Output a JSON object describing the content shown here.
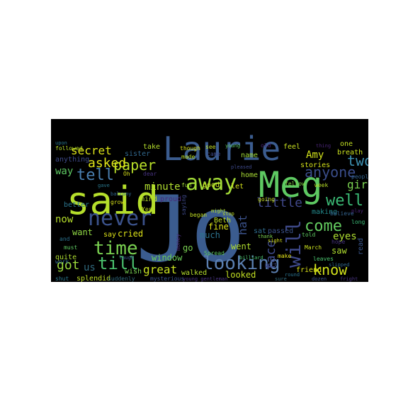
{
  "wordcloud": {
    "background_color": "#000000",
    "page_color": "#ffffff",
    "words": [
      {
        "text": "Jo",
        "color": "#3b5c8f"
      },
      {
        "text": "said",
        "color": "#b5de2b"
      },
      {
        "text": "Laurie",
        "color": "#3b5c8f"
      },
      {
        "text": "Meg",
        "color": "#5ec962"
      },
      {
        "text": "never",
        "color": "#3b528b"
      },
      {
        "text": "away",
        "color": "#a2da37"
      },
      {
        "text": "time",
        "color": "#7ad151"
      },
      {
        "text": "looking",
        "color": "#5b7fb0"
      },
      {
        "text": "till",
        "color": "#4ac16d"
      },
      {
        "text": "will",
        "color": "#3e4989"
      },
      {
        "text": "well",
        "color": "#3bbb75"
      },
      {
        "text": "come",
        "color": "#63cb5f"
      },
      {
        "text": "tell",
        "color": "#4a7fb0"
      },
      {
        "text": "know",
        "color": "#d2e21b"
      },
      {
        "text": "face",
        "color": "#3e4a89"
      },
      {
        "text": "paper",
        "color": "#b8de29"
      },
      {
        "text": "anyone",
        "color": "#3a4d8a"
      },
      {
        "text": "two",
        "color": "#3d8fb0"
      },
      {
        "text": "little",
        "color": "#3f4788"
      },
      {
        "text": "asked",
        "color": "#dde318"
      },
      {
        "text": "secret",
        "color": "#dce319"
      },
      {
        "text": "got",
        "color": "#9bd93c"
      },
      {
        "text": "great",
        "color": "#c8e020"
      },
      {
        "text": "girl",
        "color": "#7ad151"
      },
      {
        "text": "now",
        "color": "#b5de2b"
      },
      {
        "text": "us",
        "color": "#30697d"
      },
      {
        "text": "eyes",
        "color": "#addc30"
      },
      {
        "text": "hat",
        "color": "#3b528b"
      },
      {
        "text": "minute",
        "color": "#b0dd2f"
      },
      {
        "text": "way",
        "color": "#5ec962"
      },
      {
        "text": "Amy",
        "color": "#d2e21b"
      },
      {
        "text": "want",
        "color": "#8fd744"
      },
      {
        "text": "cried",
        "color": "#dde318"
      },
      {
        "text": "window",
        "color": "#6ccd5a"
      },
      {
        "text": "go",
        "color": "#7ad151"
      },
      {
        "text": "went",
        "color": "#b0dd2f"
      },
      {
        "text": "fine",
        "color": "#dde318"
      },
      {
        "text": "much",
        "color": "#2c728e"
      },
      {
        "text": "looked",
        "color": "#c2df23"
      },
      {
        "text": "saw",
        "color": "#b0dd2f"
      },
      {
        "text": "read",
        "color": "#39568c"
      },
      {
        "text": "making",
        "color": "#238a8d"
      },
      {
        "text": "sat",
        "color": "#2f6c8e"
      },
      {
        "text": "passed",
        "color": "#3b528b"
      },
      {
        "text": "friend",
        "color": "#dde318"
      },
      {
        "text": "walked",
        "color": "#b5de2b"
      },
      {
        "text": "splendid",
        "color": "#bfdf25"
      },
      {
        "text": "wish",
        "color": "#7ad151"
      },
      {
        "text": "quite",
        "color": "#addc30"
      },
      {
        "text": "say",
        "color": "#dde318"
      },
      {
        "text": "better",
        "color": "#2b758e"
      },
      {
        "text": "anything",
        "color": "#3e4a89"
      },
      {
        "text": "take",
        "color": "#b5de2b"
      },
      {
        "text": "sister",
        "color": "#31688e"
      },
      {
        "text": "feel",
        "color": "#c8e020"
      },
      {
        "text": "name",
        "color": "#a2da37"
      },
      {
        "text": "home",
        "color": "#a8db34"
      },
      {
        "text": "stories",
        "color": "#d5e21a"
      },
      {
        "text": "breath",
        "color": "#cae11f"
      },
      {
        "text": "one",
        "color": "#c2df23"
      },
      {
        "text": "fellow",
        "color": "#86d549"
      },
      {
        "text": "week",
        "color": "#b8de29"
      },
      {
        "text": "people",
        "color": "#33638d"
      },
      {
        "text": "believe",
        "color": "#33638d"
      },
      {
        "text": "long",
        "color": "#3aba76"
      },
      {
        "text": "hope",
        "color": "#46327e"
      },
      {
        "text": "leaves",
        "color": "#4ac16d"
      },
      {
        "text": "March",
        "color": "#cae11f"
      },
      {
        "text": "told",
        "color": "#5ec962"
      },
      {
        "text": "make",
        "color": "#e5e419"
      },
      {
        "text": "Beth",
        "color": "#bfdf25"
      },
      {
        "text": "began",
        "color": "#c2df23"
      },
      {
        "text": "good",
        "color": "#c8e020"
      },
      {
        "text": "let",
        "color": "#d5e21a"
      },
      {
        "text": "going",
        "color": "#cae11f"
      },
      {
        "text": "fun",
        "color": "#a2da37"
      },
      {
        "text": "proud",
        "color": "#472c7a"
      },
      {
        "text": "mind",
        "color": "#b5de2b"
      },
      {
        "text": "Yes",
        "color": "#c2df23"
      },
      {
        "text": "grow",
        "color": "#d8e219"
      },
      {
        "text": "dear",
        "color": "#46327e"
      },
      {
        "text": "Oh",
        "color": "#d8e219"
      },
      {
        "text": "made",
        "color": "#b8de29"
      },
      {
        "text": "though",
        "color": "#d8e219"
      },
      {
        "text": "see",
        "color": "#c2df23"
      },
      {
        "text": "came",
        "color": "#3e4989"
      },
      {
        "text": "old",
        "color": "#482475"
      },
      {
        "text": "followed",
        "color": "#b8de29"
      },
      {
        "text": "must",
        "color": "#5ec962"
      },
      {
        "text": "work",
        "color": "#31688e"
      },
      {
        "text": "and",
        "color": "#2c728e"
      },
      {
        "text": "Spread",
        "color": "#5ec962"
      },
      {
        "text": "mysterious",
        "color": "#3b528b"
      },
      {
        "text": "suddenly",
        "color": "#30697d"
      },
      {
        "text": "shut",
        "color": "#2a788e"
      },
      {
        "text": "billiard",
        "color": "#4ac16d"
      },
      {
        "text": "might",
        "color": "#b5de2b"
      },
      {
        "text": "young gentleman",
        "color": "#46327e"
      },
      {
        "text": "saying",
        "color": "#3e4a89"
      },
      {
        "text": "money",
        "color": "#482878"
      },
      {
        "text": "laugh",
        "color": "#3b528b"
      },
      {
        "text": "balcony",
        "color": "#31688e"
      },
      {
        "text": "gave",
        "color": "#2a788e"
      },
      {
        "text": "play",
        "color": "#482475"
      },
      {
        "text": "part",
        "color": "#3e4989"
      },
      {
        "text": "round",
        "color": "#2c728e"
      },
      {
        "text": "sure",
        "color": "#30697d"
      },
      {
        "text": "dozen",
        "color": "#3b528b"
      },
      {
        "text": "fright",
        "color": "#46327e"
      },
      {
        "text": "upon",
        "color": "#2a788e"
      },
      {
        "text": "young",
        "color": "#5ec962"
      },
      {
        "text": "sight",
        "color": "#d8e219"
      },
      {
        "text": "stop",
        "color": "#c2df23"
      },
      {
        "text": "thank",
        "color": "#7ad151"
      },
      {
        "text": "pleased",
        "color": "#3e4989"
      },
      {
        "text": "thing",
        "color": "#482475"
      },
      {
        "text": "slipped",
        "color": "#31688e"
      }
    ]
  }
}
